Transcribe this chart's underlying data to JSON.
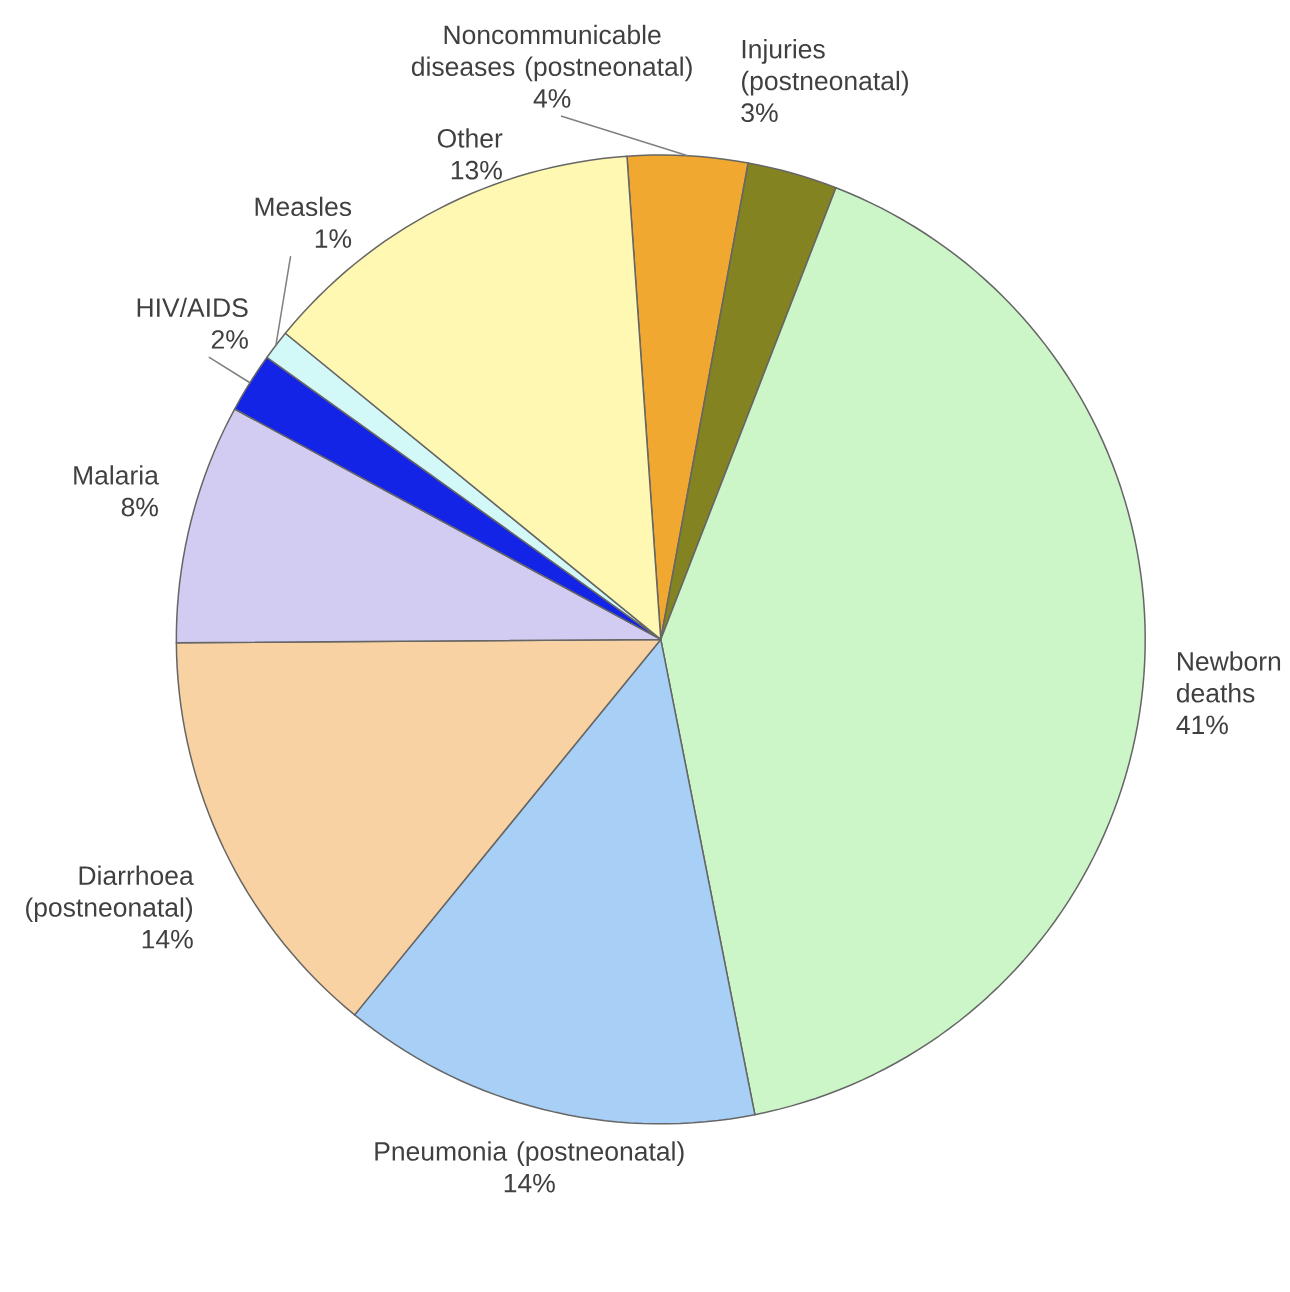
{
  "chart_data": {
    "type": "pie",
    "categories": [
      "Noncommunicable diseases (postneonatal)",
      "Injuries (postneonatal)",
      "Newborn deaths",
      "Pneumonia (postneonatal)",
      "Diarrhoea (postneonatal)",
      "Malaria",
      "HIV/AIDS",
      "Measles",
      "Other"
    ],
    "values": [
      4,
      3,
      41,
      14,
      14,
      8,
      2,
      1,
      13
    ],
    "value_labels": [
      "4%",
      "3%",
      "41%",
      "14%",
      "14%",
      "8%",
      "2%",
      "1%",
      "13%"
    ],
    "colors": [
      "#f0a830",
      "#838322",
      "#ccf5c8",
      "#a8cff5",
      "#f8d2a2",
      "#d2ccf2",
      "#1424e6",
      "#d2f8f8",
      "#fff8b2"
    ]
  }
}
